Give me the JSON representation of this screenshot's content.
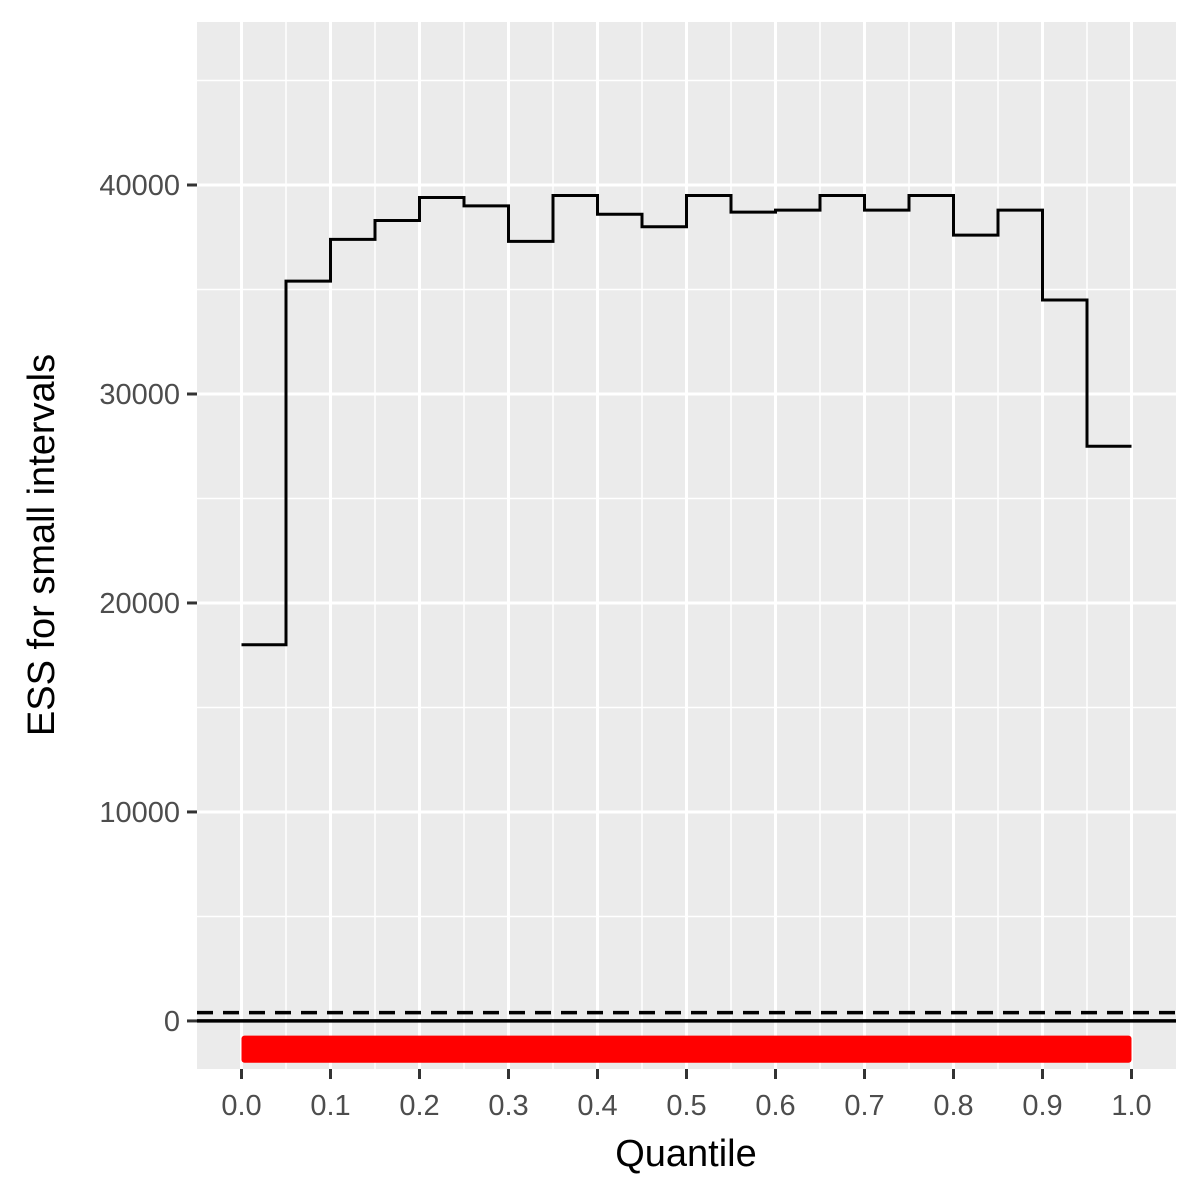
{
  "chart_data": {
    "type": "line",
    "xlabel": "Quantile",
    "ylabel": "ESS for small intervals",
    "xlim": [
      -0.05,
      1.05
    ],
    "ylim": [
      -2300,
      47800
    ],
    "x_ticks": [
      0.0,
      0.1,
      0.2,
      0.3,
      0.4,
      0.5,
      0.6,
      0.7,
      0.8,
      0.9,
      1.0
    ],
    "x_tick_labels": [
      "0.0",
      "0.1",
      "0.2",
      "0.3",
      "0.4",
      "0.5",
      "0.6",
      "0.7",
      "0.8",
      "0.9",
      "1.0"
    ],
    "y_ticks": [
      0,
      10000,
      20000,
      30000,
      40000
    ],
    "y_tick_labels": [
      "0",
      "10000",
      "20000",
      "30000",
      "40000"
    ],
    "grid": true,
    "series": [
      {
        "style": "step",
        "color": "#000000",
        "x": [
          0.0,
          0.05,
          0.1,
          0.15,
          0.2,
          0.25,
          0.3,
          0.35,
          0.4,
          0.45,
          0.5,
          0.55,
          0.6,
          0.65,
          0.7,
          0.75,
          0.8,
          0.85,
          0.9,
          0.95,
          1.0
        ],
        "values": [
          18000,
          35400,
          37400,
          38300,
          39400,
          39000,
          37300,
          39500,
          38600,
          38000,
          39500,
          38700,
          38800,
          39500,
          38800,
          39500,
          37600,
          38800,
          34500,
          27500,
          27500
        ]
      }
    ],
    "reference_lines": [
      {
        "y": 400,
        "style": "dashed",
        "color": "#000000"
      },
      {
        "y": 0,
        "style": "solid",
        "color": "#000000"
      }
    ],
    "rug": {
      "color": "#ff0000",
      "y_from": -2000,
      "y_to": -700,
      "x_from": 0.0,
      "x_to": 1.0
    },
    "colors": {
      "panel": "#ebebeb",
      "grid": "#ffffff",
      "rug": "#ff0000",
      "line": "#000000"
    }
  }
}
